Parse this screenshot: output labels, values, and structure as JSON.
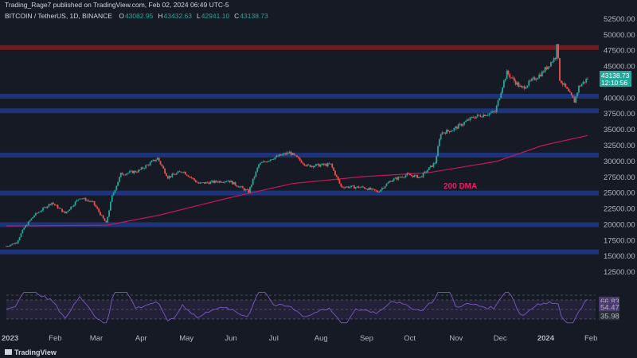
{
  "header": {
    "publisher": "Trading_Rage7 published on TradingView.com, Feb 02, 2024 06:49 UTC-5",
    "symbol": "BITCOIN / TetherUS, 1D, BINANCE",
    "ohlc": [
      {
        "label": "O",
        "value": "43082.95"
      },
      {
        "label": "H",
        "value": "43432.63"
      },
      {
        "label": "L",
        "value": "42941.10"
      },
      {
        "label": "C",
        "value": "43138.73"
      }
    ]
  },
  "price_label": {
    "value": "43138.73",
    "countdown": "12:10:56"
  },
  "annotation": "200 DMA",
  "footer": {
    "logo_text": "TradingView"
  },
  "colors": {
    "background": "#161a25",
    "up": "#26a69a",
    "down": "#ef5350",
    "support_band": "#1e3a8a",
    "resistance_band": "#7f1d1d",
    "ma200": "#c2185b",
    "rsi": "#7e57c2"
  },
  "chart_data": {
    "type": "candlestick",
    "symbol": "BITCOIN / TetherUS",
    "timeframe": "1D",
    "y_ticks": [
      12500,
      15000,
      17500,
      20000,
      22500,
      25000,
      27500,
      30000,
      32500,
      35000,
      37500,
      40000,
      45000,
      47500,
      50000,
      52500
    ],
    "ylim": [
      11000,
      54000
    ],
    "x_ticks": [
      "2023",
      "Feb",
      "Mar",
      "Apr",
      "May",
      "Jun",
      "Jul",
      "Aug",
      "Sep",
      "Oct",
      "Nov",
      "Dec",
      "2024",
      "Feb"
    ],
    "horizontal_levels": [
      {
        "price": 15700,
        "type": "support"
      },
      {
        "price": 20000,
        "type": "support"
      },
      {
        "price": 25000,
        "type": "support"
      },
      {
        "price": 31000,
        "type": "support"
      },
      {
        "price": 38000,
        "type": "support"
      },
      {
        "price": 40300,
        "type": "support"
      },
      {
        "price": 48000,
        "type": "resistance"
      }
    ],
    "price_path": [
      [
        "2023-01-01",
        16600
      ],
      [
        "2023-01-08",
        17200
      ],
      [
        "2023-01-13",
        19500
      ],
      [
        "2023-01-20",
        21500
      ],
      [
        "2023-02-01",
        23500
      ],
      [
        "2023-02-10",
        21800
      ],
      [
        "2023-02-20",
        24300
      ],
      [
        "2023-03-01",
        23500
      ],
      [
        "2023-03-10",
        20200
      ],
      [
        "2023-03-14",
        24500
      ],
      [
        "2023-03-20",
        28000
      ],
      [
        "2023-04-01",
        28500
      ],
      [
        "2023-04-14",
        30500
      ],
      [
        "2023-04-21",
        27500
      ],
      [
        "2023-05-01",
        28500
      ],
      [
        "2023-05-12",
        26500
      ],
      [
        "2023-06-01",
        27000
      ],
      [
        "2023-06-15",
        25200
      ],
      [
        "2023-06-22",
        29500
      ],
      [
        "2023-07-01",
        30500
      ],
      [
        "2023-07-13",
        31400
      ],
      [
        "2023-07-25",
        29300
      ],
      [
        "2023-08-10",
        29500
      ],
      [
        "2023-08-17",
        26000
      ],
      [
        "2023-09-01",
        25900
      ],
      [
        "2023-09-11",
        25200
      ],
      [
        "2023-09-20",
        27000
      ],
      [
        "2023-10-01",
        27900
      ],
      [
        "2023-10-10",
        27500
      ],
      [
        "2023-10-20",
        29800
      ],
      [
        "2023-10-24",
        34500
      ],
      [
        "2023-11-01",
        35000
      ],
      [
        "2023-11-15",
        37000
      ],
      [
        "2023-11-30",
        37800
      ],
      [
        "2023-12-05",
        42000
      ],
      [
        "2023-12-08",
        44000
      ],
      [
        "2023-12-18",
        41500
      ],
      [
        "2024-01-01",
        44000
      ],
      [
        "2024-01-10",
        46500
      ],
      [
        "2024-01-11",
        48900
      ],
      [
        "2024-01-13",
        43000
      ],
      [
        "2024-01-23",
        39500
      ],
      [
        "2024-01-26",
        41800
      ],
      [
        "2024-02-01",
        43100
      ]
    ],
    "ma200_path": [
      [
        "2023-01-01",
        19800
      ],
      [
        "2023-03-10",
        19900
      ],
      [
        "2023-04-15",
        21500
      ],
      [
        "2023-06-01",
        24200
      ],
      [
        "2023-07-15",
        26500
      ],
      [
        "2023-09-01",
        27600
      ],
      [
        "2023-10-15",
        28200
      ],
      [
        "2023-12-01",
        30000
      ],
      [
        "2024-01-01",
        32500
      ],
      [
        "2024-02-01",
        34100
      ]
    ],
    "rsi": {
      "levels": [
        80,
        70,
        50,
        30
      ],
      "value_labels": [
        "66.83",
        "54.47",
        "35.98"
      ],
      "ylim": [
        15,
        95
      ]
    }
  }
}
